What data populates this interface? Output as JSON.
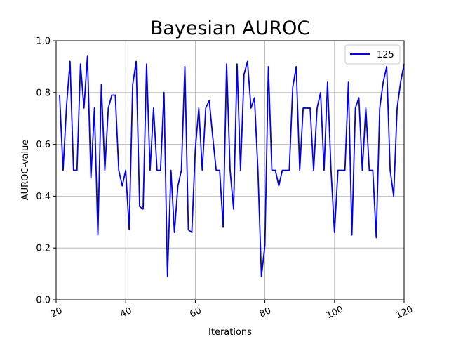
{
  "chart_data": {
    "type": "line",
    "title": "Bayesian AUROC",
    "xlabel": "Iterations",
    "ylabel": "AUROC-value",
    "xlim": [
      20,
      120
    ],
    "ylim": [
      0.0,
      1.0
    ],
    "xticks": [
      20,
      40,
      60,
      80,
      100,
      120
    ],
    "yticks": [
      0.0,
      0.2,
      0.4,
      0.6,
      0.8,
      1.0
    ],
    "xtick_labels": [
      "20",
      "40",
      "60",
      "80",
      "100",
      "120"
    ],
    "ytick_labels": [
      "0.0",
      "0.2",
      "0.4",
      "0.6",
      "0.8",
      "1.0"
    ],
    "grid": true,
    "legend_position": "top-right",
    "series": [
      {
        "name": "125",
        "color": "#0000ee",
        "x": [
          21,
          22,
          23,
          24,
          25,
          26,
          27,
          28,
          29,
          30,
          31,
          32,
          33,
          34,
          35,
          36,
          37,
          38,
          39,
          40,
          41,
          42,
          43,
          44,
          45,
          46,
          47,
          48,
          49,
          50,
          51,
          52,
          53,
          54,
          55,
          56,
          57,
          58,
          59,
          60,
          61,
          62,
          63,
          64,
          65,
          66,
          67,
          68,
          69,
          70,
          71,
          72,
          73,
          74,
          75,
          76,
          77,
          78,
          79,
          80,
          81,
          82,
          83,
          84,
          85,
          86,
          87,
          88,
          89,
          90,
          91,
          92,
          93,
          94,
          95,
          96,
          97,
          98,
          99,
          100,
          101,
          102,
          103,
          104,
          105,
          106,
          107,
          108,
          109,
          110,
          111,
          112,
          113,
          114,
          115,
          116,
          117,
          118,
          119,
          120
        ],
        "values": [
          0.79,
          0.5,
          0.75,
          0.92,
          0.5,
          0.5,
          0.91,
          0.74,
          0.94,
          0.47,
          0.74,
          0.25,
          0.83,
          0.5,
          0.74,
          0.79,
          0.79,
          0.5,
          0.44,
          0.5,
          0.27,
          0.83,
          0.92,
          0.36,
          0.35,
          0.91,
          0.5,
          0.74,
          0.5,
          0.5,
          0.8,
          0.09,
          0.5,
          0.26,
          0.44,
          0.5,
          0.9,
          0.27,
          0.26,
          0.58,
          0.74,
          0.5,
          0.74,
          0.77,
          0.63,
          0.5,
          0.5,
          0.28,
          0.91,
          0.5,
          0.35,
          0.91,
          0.5,
          0.87,
          0.92,
          0.74,
          0.78,
          0.5,
          0.09,
          0.21,
          0.9,
          0.5,
          0.5,
          0.44,
          0.5,
          0.5,
          0.5,
          0.82,
          0.9,
          0.5,
          0.74,
          0.74,
          0.74,
          0.5,
          0.74,
          0.8,
          0.5,
          0.84,
          0.5,
          0.26,
          0.5,
          0.5,
          0.5,
          0.84,
          0.25,
          0.74,
          0.78,
          0.5,
          0.74,
          0.5,
          0.5,
          0.24,
          0.74,
          0.84,
          0.9,
          0.5,
          0.4,
          0.74,
          0.84,
          0.91
        ]
      }
    ]
  }
}
